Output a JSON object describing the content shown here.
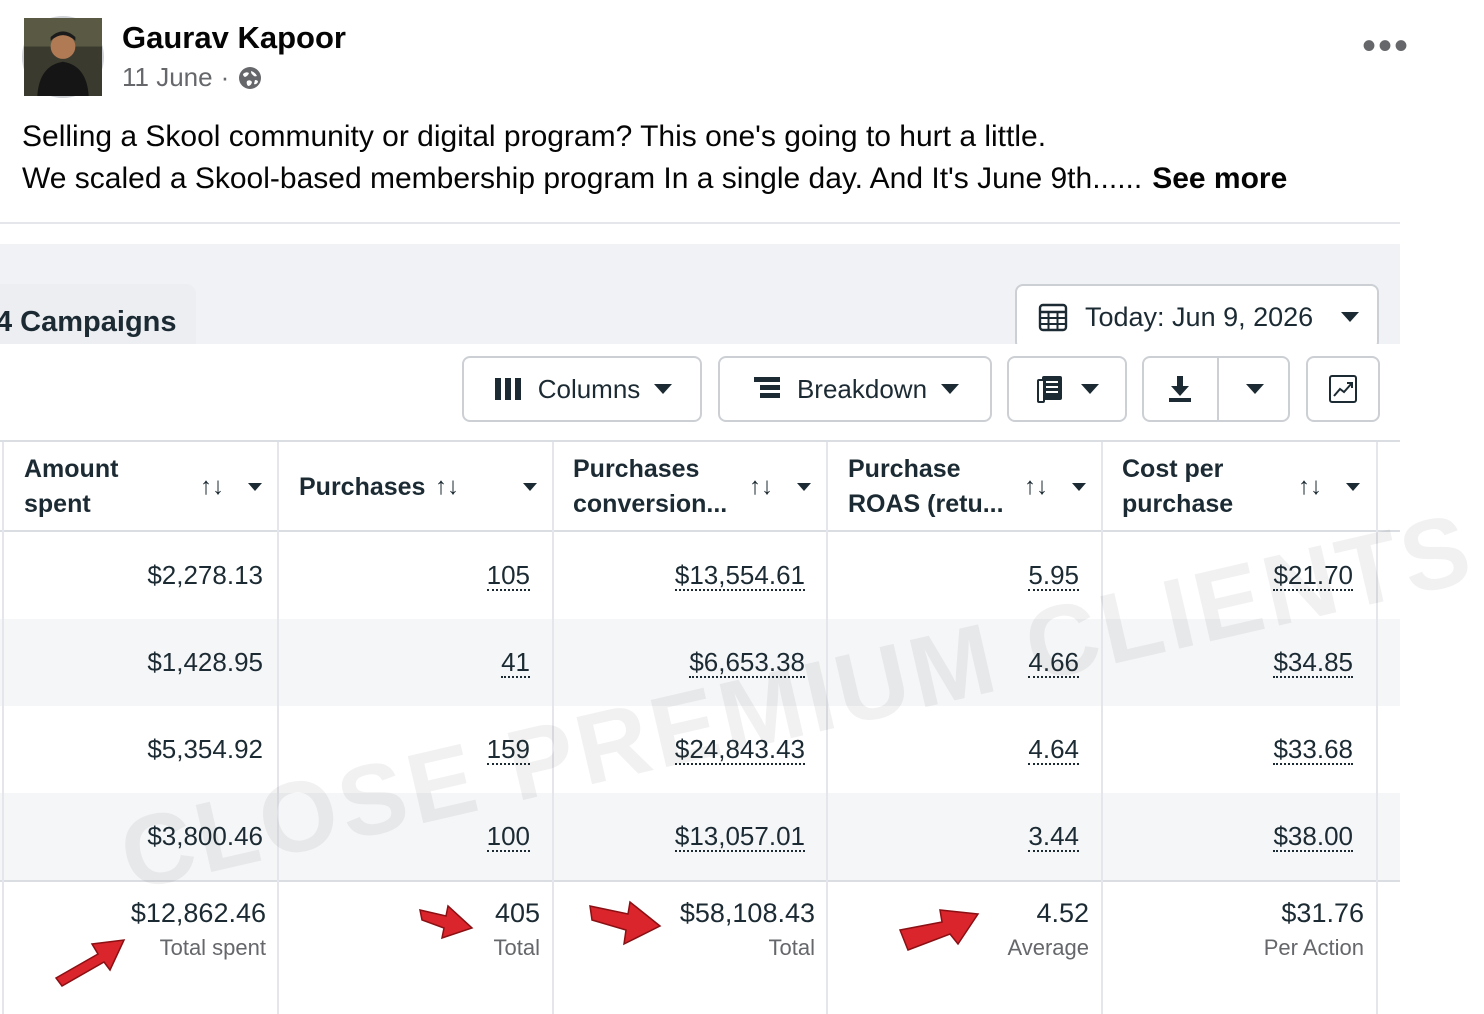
{
  "post": {
    "author": "Gaurav Kapoor",
    "date": "11 June",
    "separator": "·",
    "privacy_icon": "globe-icon",
    "more_icon": "more-horizontal-icon",
    "more_label": "•••",
    "text_line1": "Selling a Skool community or digital program? This one's going to hurt a little.",
    "text_line2": "We scaled a Skool-based membership program In a single day. And It's June 9th......",
    "see_more": "See more"
  },
  "ads_manager": {
    "campaigns_tab": "4 Campaigns",
    "date_range": "Today: Jun 9, 2026",
    "toolbar": {
      "columns": "Columns",
      "breakdown": "Breakdown"
    },
    "columns": [
      {
        "label": "Amount spent",
        "sort_icon": "↑↓"
      },
      {
        "label": "Purchases",
        "sort_icon": "↑↓"
      },
      {
        "label": "Purchases conversion...",
        "sort_icon": "↑↓"
      },
      {
        "label": "Purchase ROAS (retu...",
        "sort_icon": "↑↓"
      },
      {
        "label": "Cost per purchase",
        "sort_icon": "↑↓"
      }
    ],
    "rows": [
      {
        "amount_spent": "$2,278.13",
        "purchases": "105",
        "conversion_value": "$13,554.61",
        "roas": "5.95",
        "cost_per_purchase": "$21.70"
      },
      {
        "amount_spent": "$1,428.95",
        "purchases": "41",
        "conversion_value": "$6,653.38",
        "roas": "4.66",
        "cost_per_purchase": "$34.85"
      },
      {
        "amount_spent": "$5,354.92",
        "purchases": "159",
        "conversion_value": "$24,843.43",
        "roas": "4.64",
        "cost_per_purchase": "$33.68"
      },
      {
        "amount_spent": "$3,800.46",
        "purchases": "100",
        "conversion_value": "$13,057.01",
        "roas": "3.44",
        "cost_per_purchase": "$38.00"
      }
    ],
    "totals": {
      "amount_spent": {
        "value": "$12,862.46",
        "label": "Total spent"
      },
      "purchases": {
        "value": "405",
        "label": "Total"
      },
      "conversion_value": {
        "value": "$58,108.43",
        "label": "Total"
      },
      "roas": {
        "value": "4.52",
        "label": "Average"
      },
      "cost_per_purchase": {
        "value": "$31.76",
        "label": "Per Action"
      }
    },
    "watermark": "CLOSE PREMIUM CLIENTS"
  },
  "colors": {
    "arrow_red": "#d9252b",
    "text_primary": "#1c2b33",
    "text_secondary": "#65676b",
    "border": "#ccd0d5"
  }
}
